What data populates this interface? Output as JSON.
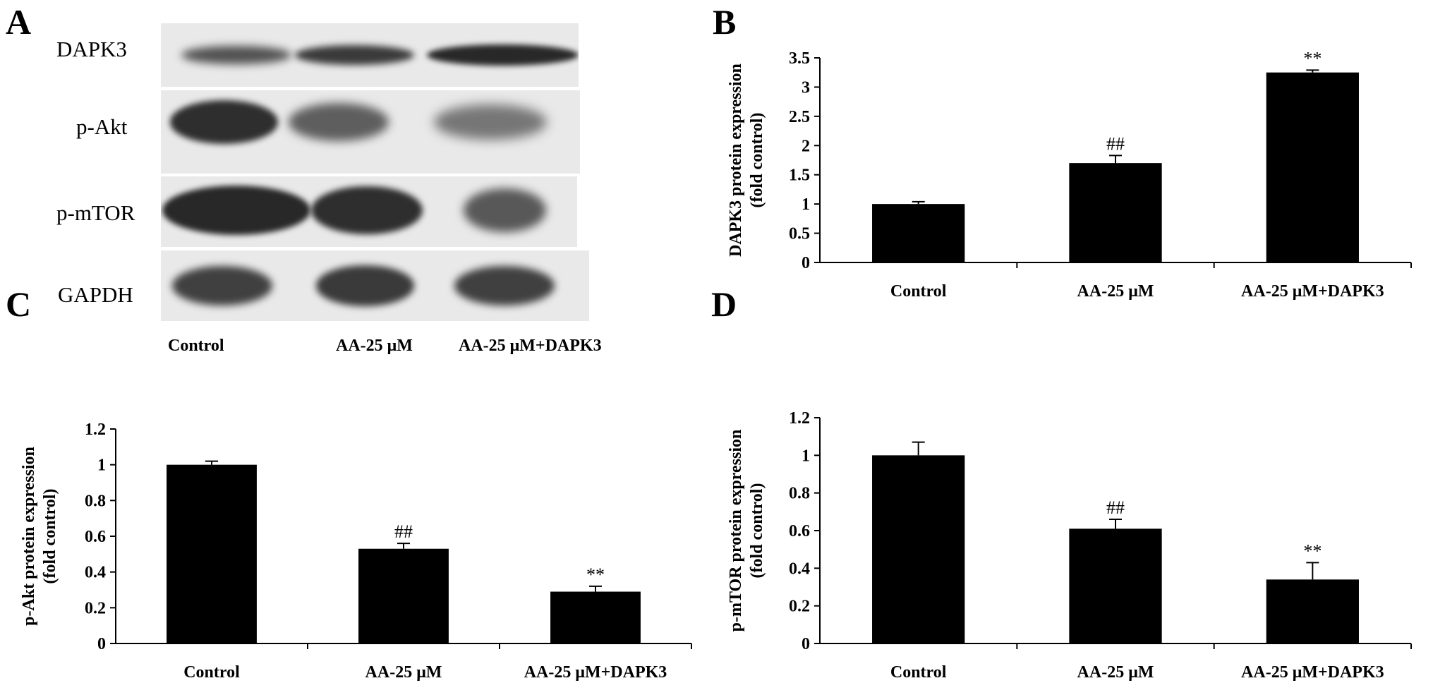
{
  "panels": {
    "a": {
      "letter": "A",
      "rows": [
        {
          "label": "DAPK3",
          "bands": [
            0.65,
            0.85,
            1.0
          ]
        },
        {
          "label": "p-Akt",
          "bands": [
            0.95,
            0.55,
            0.35
          ]
        },
        {
          "label": "p-mTOR",
          "bands": [
            1.0,
            0.95,
            0.6
          ]
        },
        {
          "label": "GAPDH",
          "bands": [
            0.8,
            0.85,
            0.8
          ]
        }
      ],
      "lanes": [
        "Control",
        "AA-25 μM",
        "AA-25 μM+DAPK3"
      ]
    },
    "b": {
      "letter": "B"
    },
    "c": {
      "letter": "C"
    },
    "d": {
      "letter": "D"
    }
  },
  "chart_data": [
    {
      "panel": "B",
      "type": "bar",
      "categories": [
        "Control",
        "AA-25 μM",
        "AA-25 μM+DAPK3"
      ],
      "values": [
        1.0,
        1.7,
        3.25
      ],
      "errors": [
        0.04,
        0.13,
        0.04
      ],
      "annotations": [
        "",
        "##",
        "**"
      ],
      "ylabel_lines": [
        "DAPK3 protein expression",
        "(fold control)"
      ],
      "ylim": [
        0,
        3.5
      ],
      "ticks": [
        0,
        0.5,
        1,
        1.5,
        2,
        2.5,
        3,
        3.5
      ],
      "tick_labels": [
        "0",
        "0.5",
        "1",
        "1.5",
        "2",
        "2.5",
        "3",
        "3.5"
      ],
      "grid": false,
      "bar_color": "#000000"
    },
    {
      "panel": "C",
      "type": "bar",
      "categories": [
        "Control",
        "AA-25 μM",
        "AA-25 μM+DAPK3"
      ],
      "values": [
        1.0,
        0.53,
        0.29
      ],
      "errors": [
        0.02,
        0.03,
        0.03
      ],
      "annotations": [
        "",
        "##",
        "**"
      ],
      "ylabel_lines": [
        "p-Akt protein expression",
        "(fold control)"
      ],
      "ylim": [
        0,
        1.2
      ],
      "ticks": [
        0,
        0.2,
        0.4,
        0.6,
        0.8,
        1.0,
        1.2
      ],
      "tick_labels": [
        "0",
        "0.2",
        "0.4",
        "0.6",
        "0.8",
        "1",
        "1.2"
      ],
      "grid": false,
      "bar_color": "#000000"
    },
    {
      "panel": "D",
      "type": "bar",
      "categories": [
        "Control",
        "AA-25 μM",
        "AA-25 μM+DAPK3"
      ],
      "values": [
        1.0,
        0.61,
        0.34
      ],
      "errors": [
        0.07,
        0.05,
        0.09
      ],
      "annotations": [
        "",
        "##",
        "**"
      ],
      "ylabel_lines": [
        "p-mTOR protein expression",
        "(fold control)"
      ],
      "ylim": [
        0,
        1.2
      ],
      "ticks": [
        0,
        0.2,
        0.4,
        0.6,
        0.8,
        1.0,
        1.2
      ],
      "tick_labels": [
        "0",
        "0.2",
        "0.4",
        "0.6",
        "0.8",
        "1",
        "1.2"
      ],
      "grid": false,
      "bar_color": "#000000"
    }
  ]
}
